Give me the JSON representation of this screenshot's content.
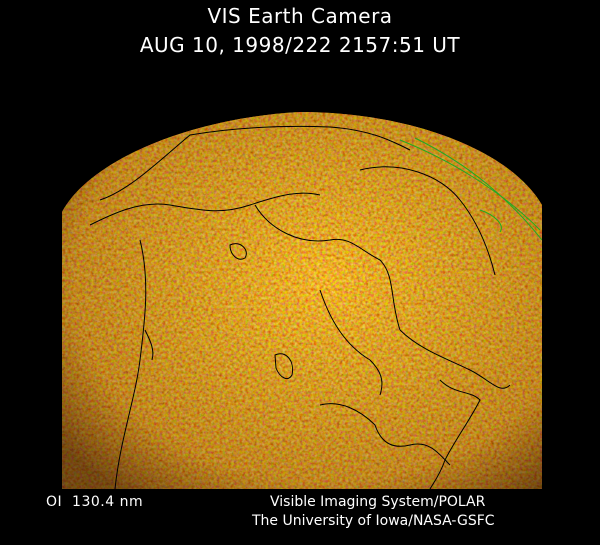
{
  "header": {
    "title": "VIS Earth Camera",
    "timestamp": "AUG 10, 1998/222 2157:51 UT"
  },
  "footer": {
    "filter": "OI  130.4 nm",
    "instrument": "Visible Imaging System/POLAR",
    "organization": "The University of Iowa/NASA-GSFC"
  },
  "image": {
    "palette": [
      "#3a0500",
      "#8a2a00",
      "#d06a00",
      "#ffc020"
    ],
    "coastline_color": "#000000",
    "limb_overlay_color": "#22aa22"
  }
}
